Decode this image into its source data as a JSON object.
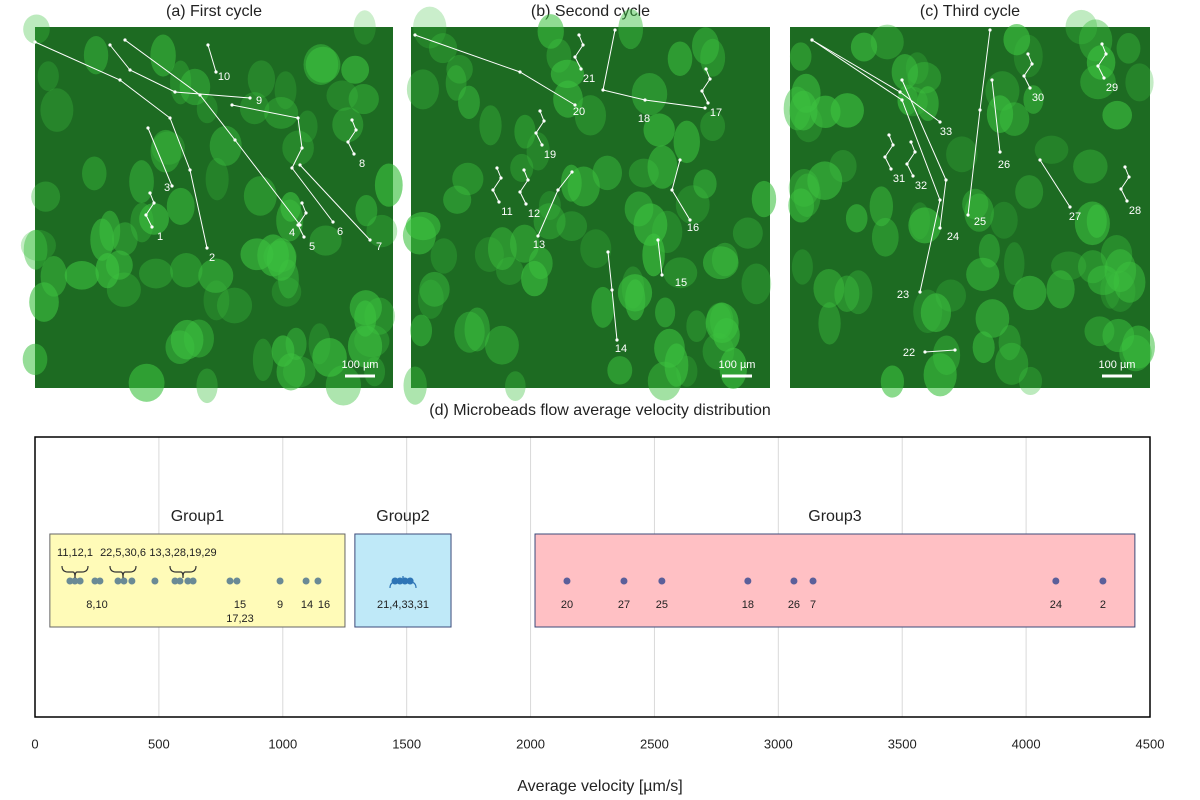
{
  "panels": [
    {
      "title": "(a) First cycle",
      "scale_label": "100 µm",
      "tracks": [
        "1",
        "2",
        "3",
        "4",
        "5",
        "6",
        "7",
        "8",
        "9",
        "10"
      ]
    },
    {
      "title": "(b) Second cycle",
      "scale_label": "100 µm",
      "tracks": [
        "11",
        "12",
        "13",
        "14",
        "15",
        "16",
        "17",
        "18",
        "19",
        "20",
        "21"
      ]
    },
    {
      "title": "(c) Third cycle",
      "scale_label": "100 µm",
      "tracks": [
        "22",
        "23",
        "24",
        "25",
        "26",
        "27",
        "28",
        "29",
        "30",
        "31",
        "32",
        "33"
      ]
    }
  ],
  "chart_data": {
    "type": "strip",
    "title": "(d) Microbeads flow average velocity distribution",
    "x_label": "Average velocity [µm/s]",
    "xlim": [
      0,
      4500
    ],
    "xticks": [
      0,
      500,
      1000,
      1500,
      2000,
      2500,
      3000,
      3500,
      4000,
      4500
    ],
    "grid": true,
    "groups": [
      {
        "name": "Group1",
        "box_color": "#fffbb8",
        "color": "#6a8a95",
        "range": [
          60,
          1251
        ],
        "values": [
          141,
          161,
          182,
          242,
          262,
          335,
          359,
          391,
          484,
          565,
          585,
          617,
          638,
          787,
          815,
          989,
          1094,
          1142
        ],
        "annotations": [
          "11,12,1",
          "22,5,30,6",
          "13,3,28,19,29",
          "8,10",
          "15",
          "17,23",
          "9",
          "14",
          "16"
        ]
      },
      {
        "name": "Group2",
        "box_color": "#bfe9f8",
        "color": "#2e75b6",
        "range": [
          1291,
          1679
        ],
        "values": [
          1453,
          1473,
          1493,
          1514
        ],
        "annotations": [
          "21,4,33,31"
        ]
      },
      {
        "name": "Group3",
        "box_color": "#ffc0c4",
        "color": "#5b5f9a",
        "range": [
          2018,
          4439
        ],
        "values": [
          2147,
          2377,
          2530,
          2877,
          3063,
          3140,
          4120,
          4310
        ],
        "annotations": [
          "20",
          "27",
          "25",
          "18",
          "26",
          "7",
          "24",
          "2"
        ]
      }
    ]
  }
}
